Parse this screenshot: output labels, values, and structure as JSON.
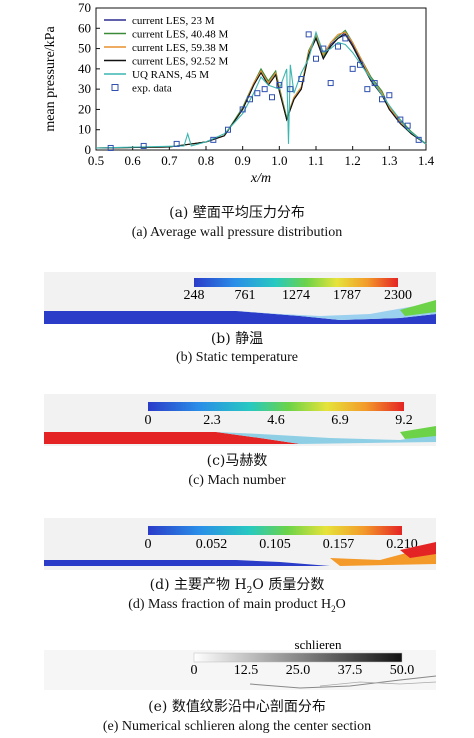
{
  "chart_data": {
    "type": "line",
    "title": "",
    "xlabel": "x/m",
    "ylabel": "mean pressure/kPa",
    "xlim": [
      0.5,
      1.4
    ],
    "ylim": [
      0,
      70
    ],
    "x_ticks": [
      "0.5",
      "0.6",
      "0.7",
      "0.8",
      "0.9",
      "1.0",
      "1.1",
      "1.2",
      "1.3",
      "1.4"
    ],
    "y_ticks": [
      "0",
      "10",
      "20",
      "30",
      "40",
      "50",
      "60",
      "70"
    ],
    "legend": {
      "position": "top-left"
    },
    "series": [
      {
        "name": "current LES, 23 M",
        "color": "#2b2b8f",
        "x": [
          0.5,
          0.7,
          0.8,
          0.85,
          0.9,
          0.93,
          0.95,
          0.97,
          0.99,
          1.0,
          1.02,
          1.04,
          1.06,
          1.08,
          1.1,
          1.12,
          1.14,
          1.16,
          1.18,
          1.2,
          1.22,
          1.25,
          1.28,
          1.3,
          1.33,
          1.36,
          1.4
        ],
        "y": [
          1,
          1.5,
          4,
          7,
          20,
          32,
          39,
          33,
          38,
          30,
          15,
          25,
          30,
          48,
          55,
          45,
          52,
          55,
          58,
          52,
          45,
          35,
          28,
          20,
          14,
          8,
          3
        ]
      },
      {
        "name": "current LES, 40.48 M",
        "color": "#3a8a3a",
        "x": [
          0.5,
          0.7,
          0.8,
          0.85,
          0.9,
          0.93,
          0.95,
          0.97,
          0.99,
          1.0,
          1.02,
          1.04,
          1.06,
          1.08,
          1.1,
          1.12,
          1.14,
          1.16,
          1.18,
          1.2,
          1.22,
          1.25,
          1.28,
          1.3,
          1.33,
          1.36,
          1.4
        ],
        "y": [
          1,
          1.5,
          4,
          7,
          21,
          33,
          40,
          34,
          39,
          31,
          16,
          26,
          31,
          49,
          56,
          46,
          53,
          56,
          59,
          53,
          46,
          36,
          29,
          21,
          15,
          9,
          3
        ]
      },
      {
        "name": "current LES, 59.38 M",
        "color": "#e8912e",
        "x": [
          0.5,
          0.7,
          0.8,
          0.85,
          0.9,
          0.93,
          0.95,
          0.97,
          0.99,
          1.0,
          1.02,
          1.04,
          1.06,
          1.08,
          1.1,
          1.12,
          1.14,
          1.16,
          1.18,
          1.2,
          1.22,
          1.25,
          1.28,
          1.3,
          1.33,
          1.36,
          1.4
        ],
        "y": [
          1,
          1.5,
          4,
          7,
          20,
          33,
          39,
          33,
          38,
          30,
          15,
          26,
          31,
          48,
          57,
          47,
          53,
          57,
          58,
          53,
          46,
          35,
          28,
          21,
          14,
          8,
          3
        ]
      },
      {
        "name": "current LES, 92.52 M",
        "color": "#111111",
        "x": [
          0.5,
          0.7,
          0.8,
          0.85,
          0.9,
          0.93,
          0.95,
          0.97,
          0.99,
          1.0,
          1.02,
          1.04,
          1.06,
          1.08,
          1.1,
          1.12,
          1.14,
          1.16,
          1.18,
          1.2,
          1.22,
          1.25,
          1.28,
          1.3,
          1.33,
          1.36,
          1.4
        ],
        "y": [
          1,
          1.5,
          4,
          7,
          20,
          32,
          38,
          32,
          37,
          29,
          15,
          25,
          30,
          47,
          55,
          45,
          51,
          55,
          57,
          51,
          44,
          34,
          27,
          20,
          13,
          8,
          3
        ]
      },
      {
        "name": "UQ RANS, 45 M",
        "color": "#3cb6b0",
        "x": [
          0.5,
          0.74,
          0.75,
          0.76,
          0.8,
          0.85,
          0.9,
          0.93,
          0.95,
          0.97,
          1.0,
          1.02,
          1.025,
          1.03,
          1.04,
          1.06,
          1.08,
          1.1,
          1.12,
          1.14,
          1.16,
          1.18,
          1.2,
          1.25,
          1.3,
          1.35,
          1.4
        ],
        "y": [
          1,
          2,
          8,
          2,
          4,
          8,
          18,
          28,
          36,
          32,
          30,
          40,
          3,
          42,
          28,
          38,
          45,
          58,
          48,
          50,
          53,
          52,
          48,
          35,
          22,
          10,
          3
        ]
      },
      {
        "name": "exp. data",
        "color": "#2f4fb0",
        "marker": "square",
        "x": [
          0.54,
          0.63,
          0.72,
          0.82,
          0.86,
          0.9,
          0.92,
          0.94,
          0.96,
          0.98,
          1.0,
          1.03,
          1.06,
          1.08,
          1.1,
          1.12,
          1.14,
          1.16,
          1.18,
          1.2,
          1.22,
          1.24,
          1.26,
          1.28,
          1.3,
          1.33,
          1.35,
          1.38
        ],
        "y": [
          1,
          2,
          3,
          5,
          10,
          20,
          25,
          28,
          30,
          26,
          32,
          30,
          35,
          57,
          45,
          50,
          33,
          51,
          55,
          40,
          42,
          30,
          33,
          25,
          27,
          15,
          12,
          5
        ]
      }
    ]
  },
  "captions": {
    "a_zh": "(a) 壁面平均压力分布",
    "a_en": "(a) Average wall pressure distribution",
    "b_zh": "(b) 静温",
    "b_en": "(b) Static temperature",
    "c_zh": "(c)马赫数",
    "c_en": "(c) Mach number",
    "d_zh_pre": "(d) 主要产物 H",
    "d_zh_sub": "2",
    "d_zh_post": "O 质量分数",
    "d_en_pre": "(d) Mass fraction of main product H",
    "d_en_sub": "2",
    "d_en_post": "O",
    "e_zh": "(e) 数值纹影沿中心剖面分布",
    "e_en": "(e) Numerical schlieren along the center section"
  },
  "contours": [
    {
      "id": "temperature",
      "ticks": [
        "248",
        "761",
        "1274",
        "1787",
        "2300"
      ],
      "title": ""
    },
    {
      "id": "mach",
      "ticks": [
        "0",
        "2.3",
        "4.6",
        "6.9",
        "9.2"
      ],
      "title": ""
    },
    {
      "id": "h2o",
      "ticks": [
        "0",
        "0.052",
        "0.105",
        "0.157",
        "0.210"
      ],
      "title": ""
    },
    {
      "id": "schlieren",
      "ticks": [
        "0",
        "12.5",
        "25.0",
        "37.5",
        "50.0"
      ],
      "title": "schlieren"
    }
  ]
}
